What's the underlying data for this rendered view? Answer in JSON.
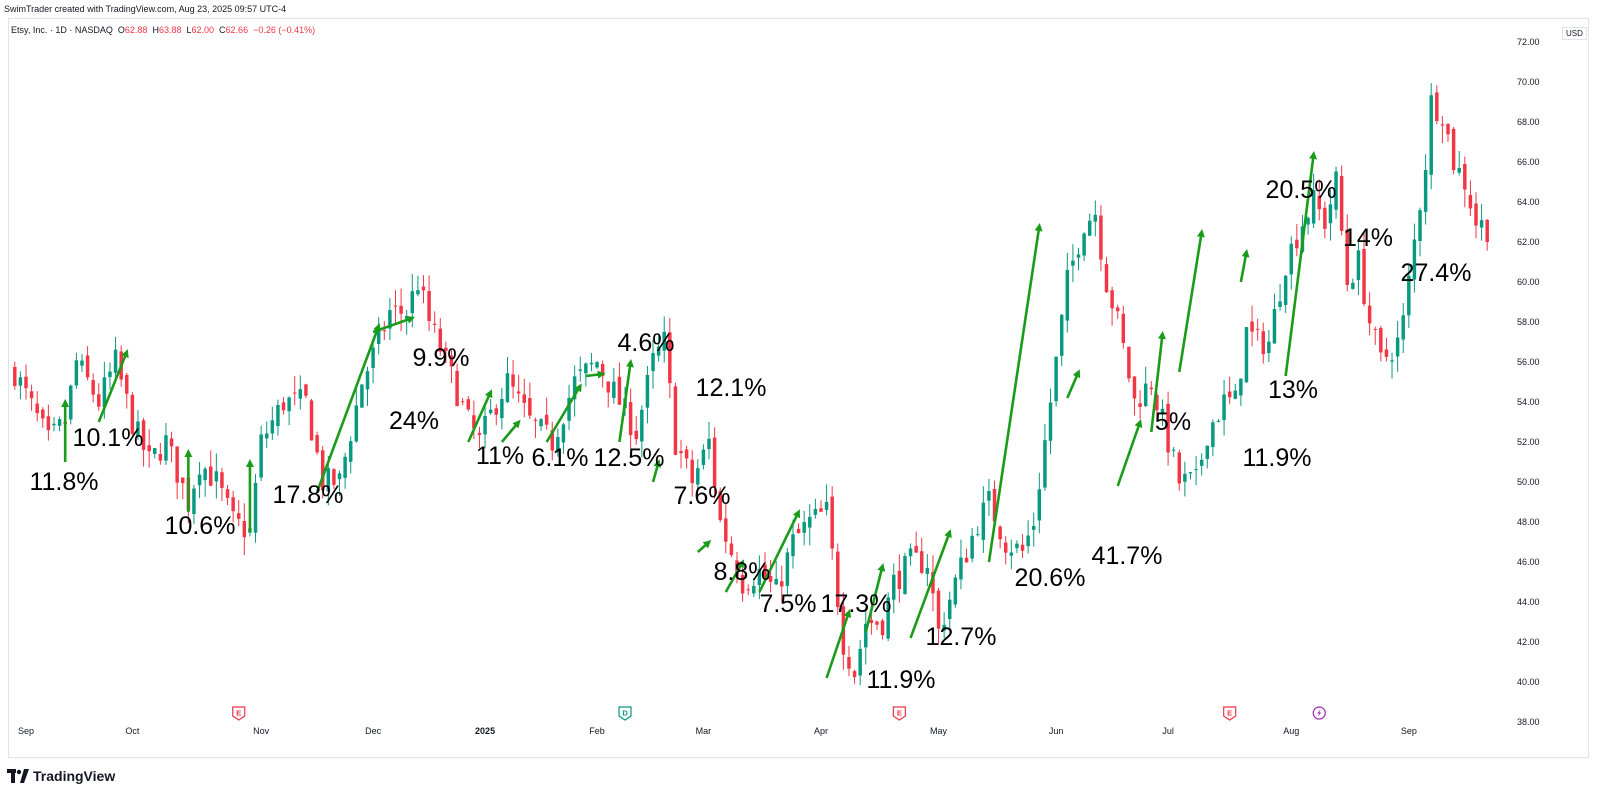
{
  "header": {
    "text": "SwimTrader created with TradingView.com, Aug 23, 2025 09:57 UTC-4"
  },
  "legend": {
    "symbol": "Etsy, Inc. · 1D · NASDAQ",
    "o_label": "O",
    "o": "62.88",
    "h_label": "H",
    "h": "63.88",
    "l_label": "L",
    "l": "62.00",
    "c_label": "C",
    "c": "62.66",
    "change": "−0.26 (−0.41%)"
  },
  "currency": "USD",
  "footer": {
    "brand": "TradingView"
  },
  "colors": {
    "up": "#089981",
    "down": "#f23645",
    "arrow": "#1a9c1a",
    "axis_text": "#131722",
    "earnings": "#f23645",
    "dividend": "#089981",
    "split": "#9c27b0"
  },
  "chart_data": {
    "type": "candlestick",
    "y_axis": {
      "min": 38,
      "max": 72,
      "ticks": [
        "38.00",
        "40.00",
        "42.00",
        "44.00",
        "46.00",
        "48.00",
        "50.00",
        "52.00",
        "54.00",
        "56.00",
        "58.00",
        "60.00",
        "62.00",
        "64.00",
        "66.00",
        "68.00",
        "70.00",
        "72.00"
      ]
    },
    "x_axis": {
      "labels": [
        {
          "label": "Sep",
          "bar": 2
        },
        {
          "label": "Oct",
          "bar": 21
        },
        {
          "label": "Nov",
          "bar": 44
        },
        {
          "label": "Dec",
          "bar": 64
        },
        {
          "label": "2025",
          "bar": 84
        },
        {
          "label": "Feb",
          "bar": 104
        },
        {
          "label": "Mar",
          "bar": 123
        },
        {
          "label": "Apr",
          "bar": 144
        },
        {
          "label": "May",
          "bar": 165
        },
        {
          "label": "Jun",
          "bar": 186
        },
        {
          "label": "Jul",
          "bar": 206
        },
        {
          "label": "Aug",
          "bar": 228
        },
        {
          "label": "Sep",
          "bar": 249
        }
      ]
    },
    "waypoints": [
      [
        0,
        55.5
      ],
      [
        6,
        52
      ],
      [
        9,
        53
      ],
      [
        11,
        56
      ],
      [
        15,
        54
      ],
      [
        18,
        56
      ],
      [
        21,
        53
      ],
      [
        24,
        51
      ],
      [
        27,
        52
      ],
      [
        31,
        49
      ],
      [
        33,
        51
      ],
      [
        36,
        50
      ],
      [
        39,
        48
      ],
      [
        42,
        47.5
      ],
      [
        44,
        52
      ],
      [
        48,
        54
      ],
      [
        52,
        54
      ],
      [
        55,
        50
      ],
      [
        58,
        50
      ],
      [
        62,
        55
      ],
      [
        65,
        57
      ],
      [
        67,
        58.5
      ],
      [
        70,
        58.5
      ],
      [
        72,
        60
      ],
      [
        74,
        58
      ],
      [
        77,
        56
      ],
      [
        81,
        53
      ],
      [
        83,
        52
      ],
      [
        86,
        54
      ],
      [
        88,
        55
      ],
      [
        92,
        53
      ],
      [
        96,
        52
      ],
      [
        100,
        55
      ],
      [
        104,
        56
      ],
      [
        108,
        54
      ],
      [
        111,
        52.5
      ],
      [
        114,
        56
      ],
      [
        116,
        57
      ],
      [
        118,
        52
      ],
      [
        121,
        50
      ],
      [
        124,
        52
      ],
      [
        126,
        48
      ],
      [
        130,
        45
      ],
      [
        133,
        45.5
      ],
      [
        136,
        44.5
      ],
      [
        139,
        47
      ],
      [
        142,
        48
      ],
      [
        145,
        48.5
      ],
      [
        148,
        42
      ],
      [
        150,
        40.5
      ],
      [
        152,
        43
      ],
      [
        155,
        43
      ],
      [
        157,
        45
      ],
      [
        160,
        46
      ],
      [
        163,
        46
      ],
      [
        165,
        42.5
      ],
      [
        168,
        45
      ],
      [
        172,
        48
      ],
      [
        174,
        49
      ],
      [
        177,
        47
      ],
      [
        180,
        46.5
      ],
      [
        182,
        48
      ],
      [
        184,
        52
      ],
      [
        186,
        56
      ],
      [
        188,
        60
      ],
      [
        191,
        63
      ],
      [
        193,
        63.5
      ],
      [
        195,
        60
      ],
      [
        197,
        58
      ],
      [
        200,
        54
      ],
      [
        203,
        55
      ],
      [
        206,
        52
      ],
      [
        208,
        50
      ],
      [
        211,
        50
      ],
      [
        213,
        52.5
      ],
      [
        216,
        54
      ],
      [
        218,
        54
      ],
      [
        220,
        57.5
      ],
      [
        222,
        57
      ],
      [
        224,
        57
      ],
      [
        227,
        61
      ],
      [
        230,
        63
      ],
      [
        232,
        64
      ],
      [
        234,
        63
      ],
      [
        236,
        65
      ],
      [
        238,
        60
      ],
      [
        240,
        61
      ],
      [
        242,
        58
      ],
      [
        244,
        56
      ],
      [
        247,
        57
      ],
      [
        248,
        58
      ],
      [
        250,
        62
      ],
      [
        252,
        66
      ],
      [
        253,
        69
      ],
      [
        255,
        68.5
      ],
      [
        257,
        66
      ],
      [
        259,
        65
      ],
      [
        261,
        63
      ],
      [
        263,
        62.7
      ]
    ],
    "ohlc_note": "Daily candles, roughly Aug 29 2024 to Aug 22 2025",
    "markers": [
      {
        "type": "E",
        "bar": 40
      },
      {
        "type": "D",
        "bar": 109
      },
      {
        "type": "E",
        "bar": 158
      },
      {
        "type": "E",
        "bar": 217
      },
      {
        "type": "S",
        "bar": 233
      }
    ],
    "annotations": [
      {
        "label": "11.8%",
        "from": [
          9,
          51
        ],
        "to": [
          9,
          54
        ]
      },
      {
        "label": "10.1%",
        "from": [
          15,
          53
        ],
        "to": [
          20,
          56.5
        ]
      },
      {
        "label": "10.6%",
        "from": [
          31,
          48.5
        ],
        "to": [
          31,
          51.5
        ]
      },
      {
        "label": "17.8%",
        "from": [
          42,
          47.5
        ],
        "to": [
          42,
          51
        ]
      },
      {
        "label": "24%",
        "from": [
          54,
          49.5
        ],
        "to": [
          65,
          57.8
        ]
      },
      {
        "label": "9.9%",
        "from": [
          64,
          57.5
        ],
        "to": [
          71,
          58.2
        ]
      },
      {
        "label": "11%",
        "from": [
          81,
          52
        ],
        "to": [
          85,
          54.5
        ]
      },
      {
        "label": "6.1%",
        "from": [
          87,
          52
        ],
        "to": [
          90,
          53
        ]
      },
      {
        "label": "12.5%",
        "from": [
          95,
          52
        ],
        "to": [
          101,
          54.8
        ]
      },
      {
        "label": "4.6%",
        "from": [
          102,
          55.3
        ],
        "to": [
          105,
          55.4
        ]
      },
      {
        "label": "12.1%",
        "from": [
          108,
          52
        ],
        "to": [
          110,
          56
        ]
      },
      {
        "label": "7.6%",
        "from": [
          114,
          50
        ],
        "to": [
          115,
          51
        ]
      },
      {
        "label": "8.8%",
        "from": [
          122,
          46.5
        ],
        "to": [
          124,
          47
        ]
      },
      {
        "label": "7.5%",
        "from": [
          127,
          44.5
        ],
        "to": [
          130,
          46
        ]
      },
      {
        "label": "17.3%",
        "from": [
          133,
          44.5
        ],
        "to": [
          140,
          48.5
        ]
      },
      {
        "label": "11.9%",
        "from": [
          145,
          40.2
        ],
        "to": [
          149,
          43.5
        ]
      },
      {
        "label": "12.7%",
        "from": [
          152,
          42.5
        ],
        "to": [
          155,
          45.8
        ]
      },
      {
        "label": "20.6%",
        "from": [
          160,
          42.2
        ],
        "to": [
          167,
          47.5
        ]
      },
      {
        "label": "41.7%",
        "from": [
          174,
          46
        ],
        "to": [
          183,
          62.8
        ]
      },
      {
        "label": "5%",
        "from": [
          188,
          54.2
        ],
        "to": [
          190,
          55.5
        ]
      },
      {
        "label": "11.9%",
        "from": [
          197,
          49.8
        ],
        "to": [
          201,
          53
        ]
      },
      {
        "label": "13%",
        "from": [
          203,
          52.5
        ],
        "to": [
          205,
          57.4
        ]
      },
      {
        "label": "20.5%",
        "from": [
          208,
          55.5
        ],
        "to": [
          212,
          62.5
        ]
      },
      {
        "label": "14%",
        "from": [
          219,
          60
        ],
        "to": [
          220,
          61.5
        ]
      },
      {
        "label": "27.4%",
        "from": [
          227,
          55.3
        ],
        "to": [
          232,
          66.4
        ]
      }
    ]
  }
}
